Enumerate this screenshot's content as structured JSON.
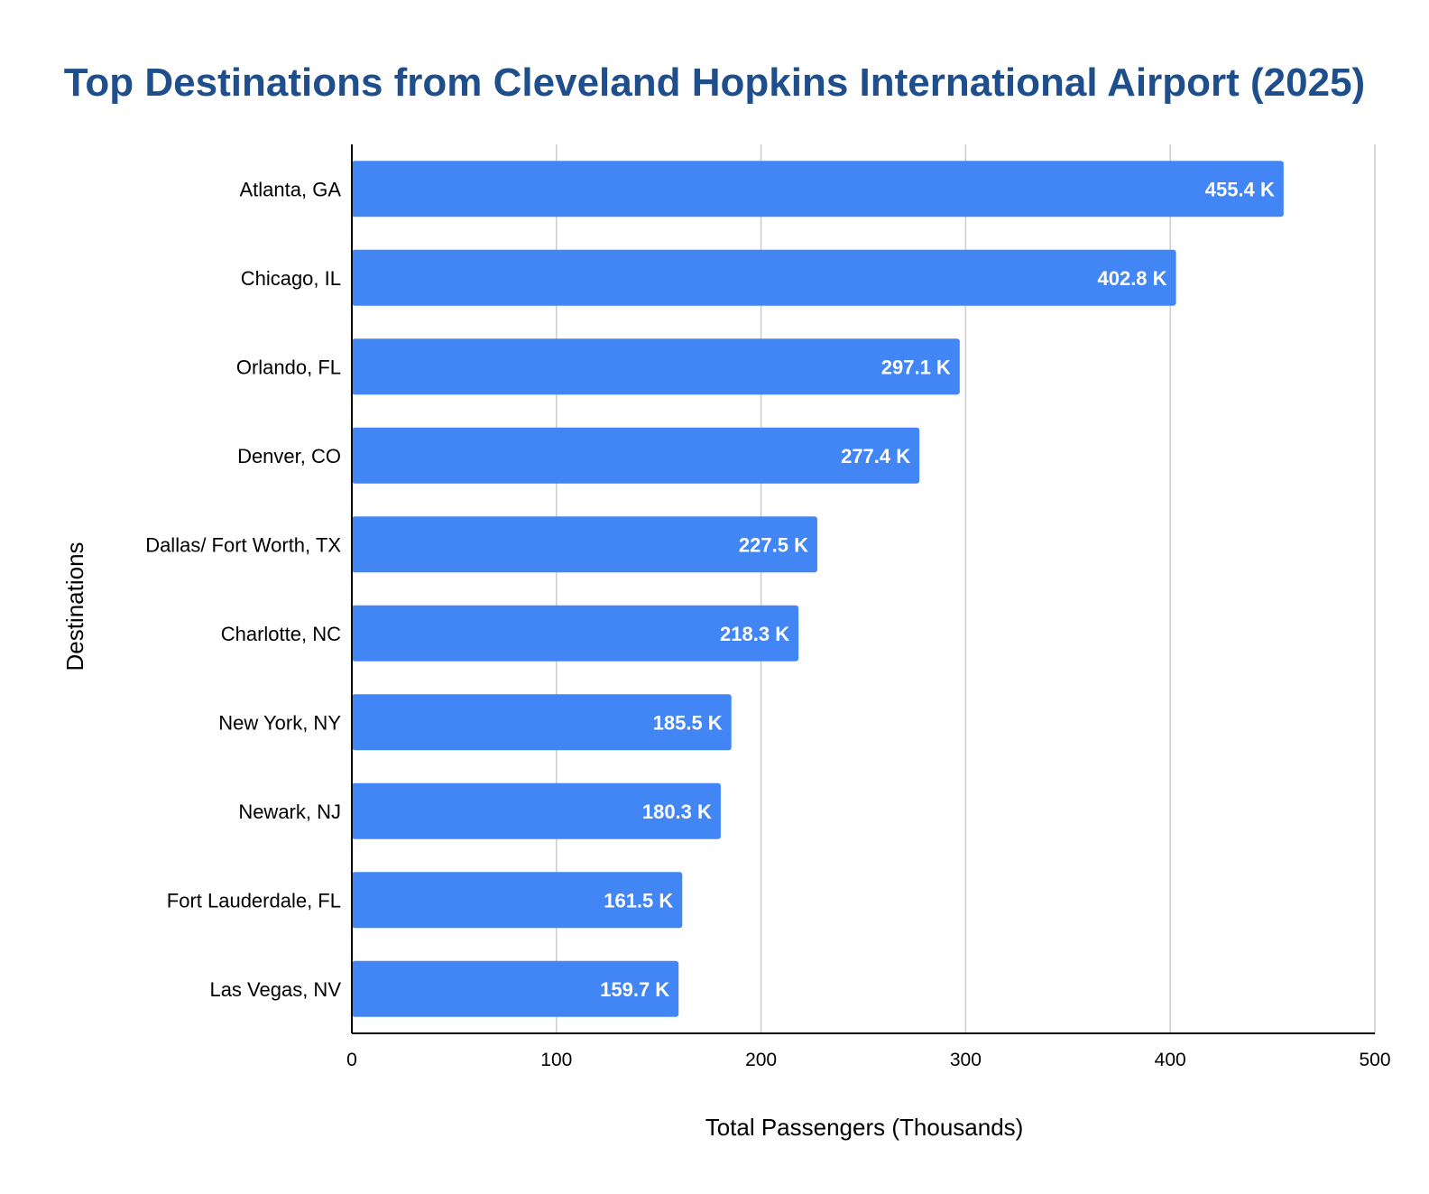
{
  "chart_data": {
    "type": "bar",
    "orientation": "horizontal",
    "title": "Top Destinations from Cleveland Hopkins International Airport (2025)",
    "xlabel": "Total Passengers (Thousands)",
    "ylabel": "Destinations",
    "xlim": [
      0,
      500
    ],
    "x_ticks": [
      "0",
      "100",
      "200",
      "300",
      "400",
      "500"
    ],
    "grid": "vertical",
    "legend": "none",
    "colors": {
      "bar": "#4285F4",
      "title": "#1F4E8C",
      "grid": "#CCCCCC",
      "axis": "#000000",
      "data_label": "#FFFFFF"
    },
    "categories": [
      "Atlanta, GA",
      "Chicago, IL",
      "Orlando, FL",
      "Denver, CO",
      "Dallas/ Fort Worth, TX",
      "Charlotte, NC",
      "New York, NY",
      "Newark, NJ",
      "Fort Lauderdale, FL",
      "Las Vegas, NV"
    ],
    "values": [
      455.4,
      402.8,
      297.1,
      277.4,
      227.5,
      218.3,
      185.5,
      180.3,
      161.5,
      159.7
    ],
    "data_labels": [
      "455.4 K",
      "402.8 K",
      "297.1 K",
      "277.4 K",
      "227.5 K",
      "218.3 K",
      "185.5 K",
      "180.3 K",
      "161.5 K",
      "159.7 K"
    ]
  }
}
